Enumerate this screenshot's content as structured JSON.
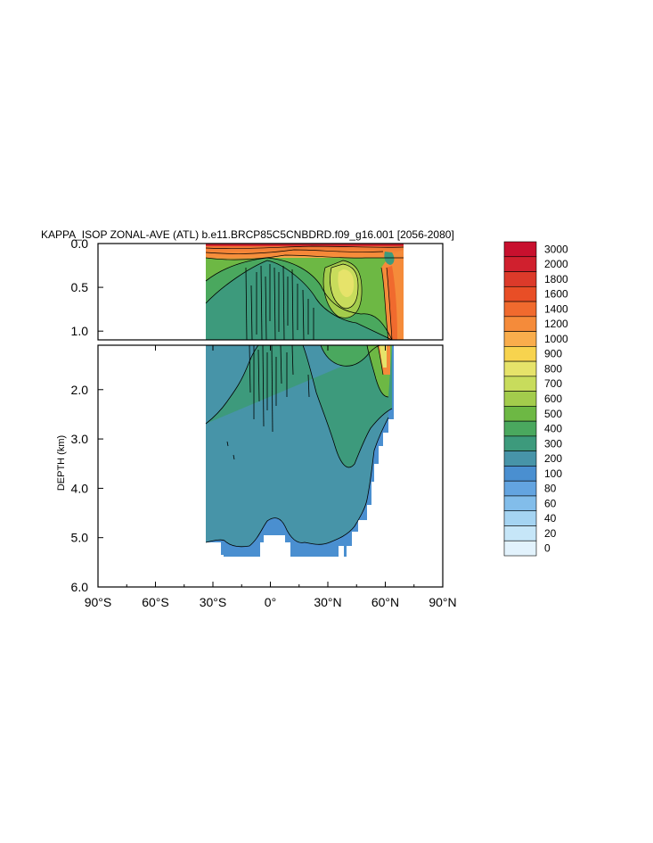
{
  "chart_data": {
    "type": "heatmap",
    "title": "KAPPA_ISOP ZONAL-AVE (ATL) b.e11.BRCP85C5CNBDRD.f09_g16.001 [2056-2080]",
    "ylabel": "DEPTH (km)",
    "xlabel": "",
    "x_ticks": [
      "90°S",
      "60°S",
      "30°S",
      "0°",
      "30°N",
      "60°N",
      "90°N"
    ],
    "x_tick_values": [
      -90,
      -60,
      -30,
      0,
      30,
      60,
      90
    ],
    "xlim": [
      -90,
      90
    ],
    "upper_panel": {
      "ylim": [
        0.0,
        1.1
      ],
      "y_ticks": [
        "0.0",
        "0.5",
        "1.0"
      ],
      "y_tick_values": [
        0.0,
        0.5,
        1.0
      ]
    },
    "lower_panel": {
      "ylim": [
        1.1,
        6.0
      ],
      "y_ticks": [
        "2.0",
        "3.0",
        "4.0",
        "5.0",
        "6.0"
      ],
      "y_tick_values": [
        2.0,
        3.0,
        4.0,
        5.0,
        6.0
      ]
    },
    "colorbar": {
      "levels": [
        "3000",
        "2000",
        "1800",
        "1600",
        "1400",
        "1200",
        "1000",
        "900",
        "800",
        "700",
        "600",
        "500",
        "400",
        "300",
        "200",
        "100",
        "80",
        "60",
        "40",
        "20",
        "0"
      ],
      "colors": [
        "#c8102e",
        "#d0202e",
        "#dc3a2a",
        "#e84e26",
        "#f06a2e",
        "#f58b3a",
        "#f9ad4c",
        "#f7d34e",
        "#e6e36a",
        "#c8dc5c",
        "#a3cc4c",
        "#6db844",
        "#4aa85e",
        "#3d9a7c",
        "#4794a8",
        "#4a8fd0",
        "#63a4e0",
        "#82bdea",
        "#a5d4f2",
        "#c6e6f8",
        "#e2f2fc"
      ]
    }
  }
}
